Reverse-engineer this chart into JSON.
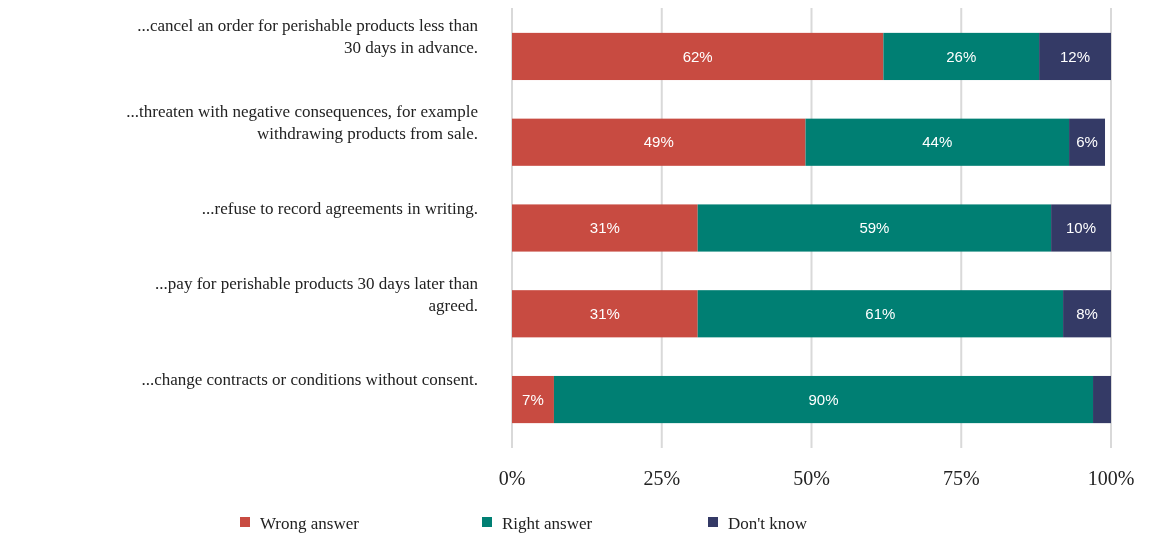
{
  "chart_data": {
    "type": "bar",
    "orientation": "horizontal",
    "stacked": true,
    "categories": [
      "...cancel an order for perishable products less than 30 days in advance.",
      "...threaten with negative consequences, for example withdrawing products from sale.",
      "...refuse to record agreements in writing.",
      "...pay for perishable products 30 days later than agreed.",
      "...change contracts or conditions without consent."
    ],
    "series": [
      {
        "name": "Wrong answer",
        "color": "#c84b41",
        "values": [
          62,
          49,
          31,
          31,
          7
        ],
        "value_labels": [
          "62%",
          "49%",
          "31%",
          "31%",
          "7%"
        ]
      },
      {
        "name": "Right answer",
        "color": "#007f73",
        "values": [
          26,
          44,
          59,
          61,
          90
        ],
        "value_labels": [
          "26%",
          "44%",
          "59%",
          "61%",
          "90%"
        ]
      },
      {
        "name": "Don't know",
        "color": "#343a66",
        "values": [
          12,
          6,
          10,
          8,
          3
        ],
        "value_labels": [
          "12%",
          "6%",
          "10%",
          "8%",
          null
        ]
      }
    ],
    "xlim": [
      0,
      100
    ],
    "xticks": [
      {
        "value": 0,
        "label": "0%"
      },
      {
        "value": 25,
        "label": "25%"
      },
      {
        "value": 50,
        "label": "50%"
      },
      {
        "value": 75,
        "label": "75%"
      },
      {
        "value": 100,
        "label": "100%"
      }
    ],
    "grid": "x",
    "legend": "bottom"
  }
}
